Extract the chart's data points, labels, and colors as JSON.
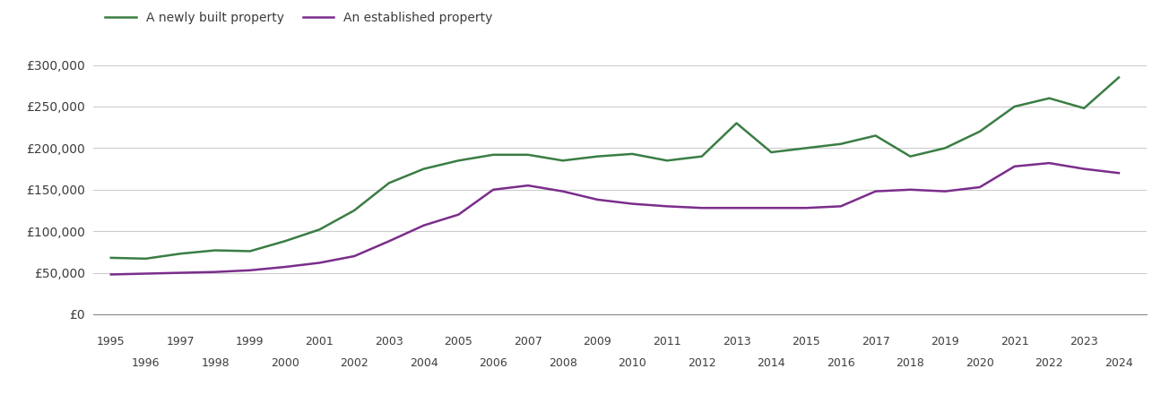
{
  "newly_built": {
    "years": [
      1995,
      1996,
      1997,
      1998,
      1999,
      2000,
      2001,
      2002,
      2003,
      2004,
      2005,
      2006,
      2007,
      2008,
      2009,
      2010,
      2011,
      2012,
      2013,
      2014,
      2015,
      2016,
      2017,
      2018,
      2019,
      2020,
      2021,
      2022,
      2023,
      2024
    ],
    "values": [
      68000,
      67000,
      73000,
      77000,
      76000,
      88000,
      102000,
      125000,
      158000,
      175000,
      185000,
      192000,
      192000,
      185000,
      190000,
      193000,
      185000,
      190000,
      230000,
      195000,
      200000,
      205000,
      215000,
      190000,
      200000,
      220000,
      250000,
      260000,
      248000,
      285000
    ]
  },
  "established": {
    "years": [
      1995,
      1996,
      1997,
      1998,
      1999,
      2000,
      2001,
      2002,
      2003,
      2004,
      2005,
      2006,
      2007,
      2008,
      2009,
      2010,
      2011,
      2012,
      2013,
      2014,
      2015,
      2016,
      2017,
      2018,
      2019,
      2020,
      2021,
      2022,
      2023,
      2024
    ],
    "values": [
      48000,
      49000,
      50000,
      51000,
      53000,
      57000,
      62000,
      70000,
      88000,
      107000,
      120000,
      150000,
      155000,
      148000,
      138000,
      133000,
      130000,
      128000,
      128000,
      128000,
      128000,
      130000,
      148000,
      150000,
      148000,
      153000,
      178000,
      182000,
      175000,
      170000
    ]
  },
  "newly_color": "#3a7d44",
  "established_color": "#7b2d8b",
  "legend_labels": [
    "A newly built property",
    "An established property"
  ],
  "ylim": [
    0,
    320000
  ],
  "yticks": [
    0,
    50000,
    100000,
    150000,
    200000,
    250000,
    300000
  ],
  "ytick_labels": [
    "£0",
    "£50,000",
    "£100,000",
    "£150,000",
    "£200,000",
    "£250,000",
    "£300,000"
  ],
  "xlim_start": 1994.5,
  "xlim_end": 2024.8,
  "background_color": "#ffffff",
  "line_width": 1.8,
  "font_color": "#3d3d3d",
  "grid_color": "#cccccc"
}
